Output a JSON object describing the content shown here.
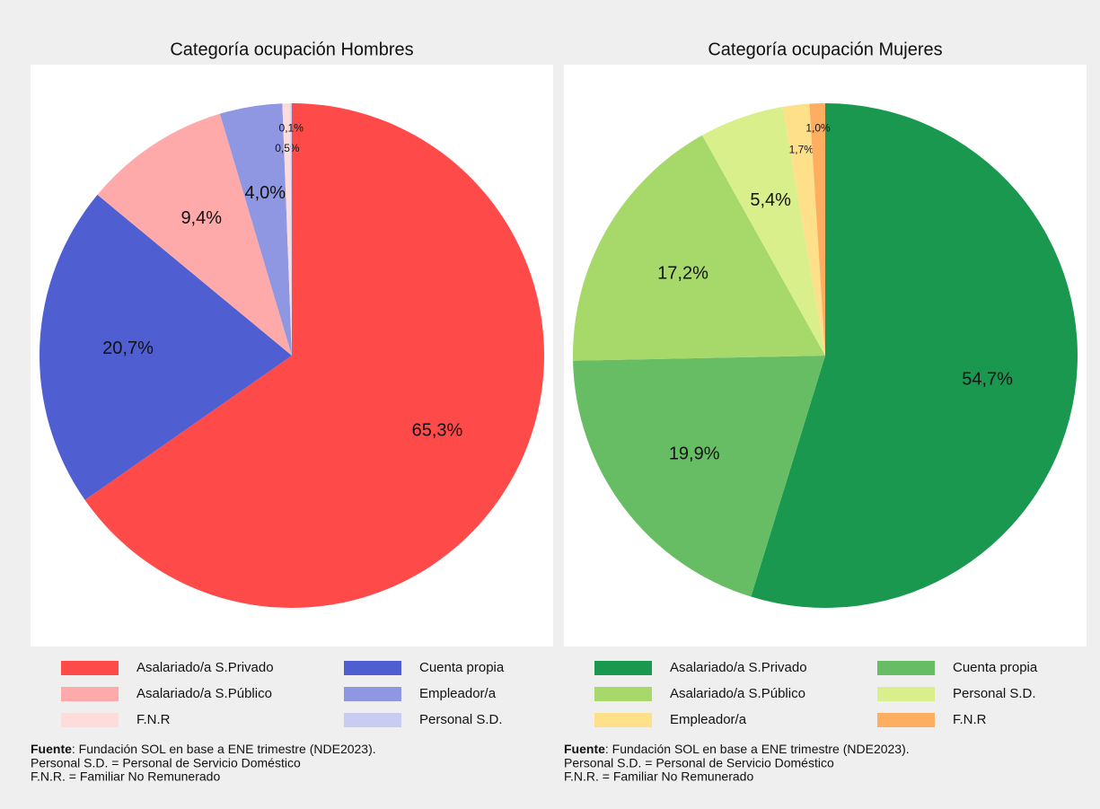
{
  "chart_data": [
    {
      "type": "pie",
      "title": "Categoría ocupación Hombres",
      "categories": [
        "Asalariado/a S.Privado",
        "Cuenta propia",
        "Asalariado/a S.Público",
        "Empleador/a",
        "F.N.R",
        "Personal S.D."
      ],
      "values": [
        65.3,
        20.7,
        9.4,
        4.0,
        0.5,
        0.1
      ],
      "value_labels": [
        "65,3%",
        "20,7%",
        "9,4%",
        "4,0%",
        "0,5%",
        "0,1%"
      ],
      "colors": [
        "#ff4a4a",
        "#4f5fd1",
        "#ffaaaa",
        "#8f97e3",
        "#ffdcdc",
        "#c9ccf0"
      ],
      "source_label": "Fuente",
      "source": ": Fundación SOL en base a ENE trimestre (NDE2023).",
      "notes": [
        "Personal S.D. = Personal de Servicio Doméstico",
        "F.N.R. = Familiar No Remunerado"
      ]
    },
    {
      "type": "pie",
      "title": "Categoría ocupación Mujeres",
      "categories": [
        "Asalariado/a S.Privado",
        "Cuenta propia",
        "Asalariado/a S.Público",
        "Personal S.D.",
        "Empleador/a",
        "F.N.R"
      ],
      "values": [
        54.7,
        19.9,
        17.2,
        5.4,
        1.7,
        1.0
      ],
      "value_labels": [
        "54,7%",
        "19,9%",
        "17,2%",
        "5,4%",
        "1,7%",
        "1,0%"
      ],
      "colors": [
        "#1a9850",
        "#66bd63",
        "#a6d96a",
        "#d9ef8b",
        "#fee08b",
        "#fdae61"
      ],
      "source_label": "Fuente",
      "source": ": Fundación SOL en base a ENE trimestre (NDE2023).",
      "notes": [
        "Personal S.D. = Personal de Servicio Doméstico",
        "F.N.R. = Familiar No Remunerado"
      ]
    }
  ]
}
